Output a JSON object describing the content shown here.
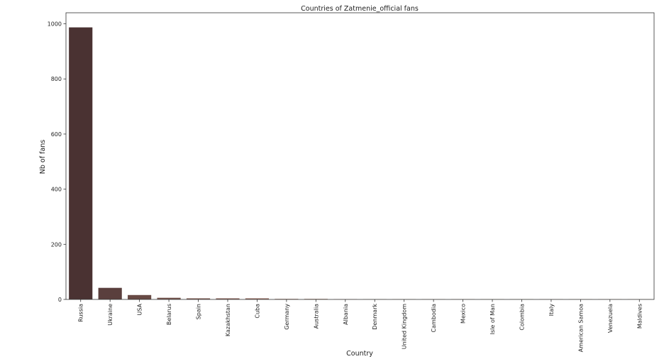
{
  "chart_data": {
    "type": "bar",
    "title": "Countries of Zatmenie_official fans",
    "xlabel": "Country",
    "ylabel": "Nb of fans",
    "ylim": [
      0,
      1040
    ],
    "yticks": [
      0,
      200,
      400,
      600,
      800,
      1000
    ],
    "grid": false,
    "categories": [
      "Russia",
      "Ukraine",
      "USA",
      "Belarus",
      "Spain",
      "Kazakhstan",
      "Cuba",
      "Germany",
      "Australia",
      "Albania",
      "Denmark",
      "United Kingdom",
      "Cambodia",
      "Mexico",
      "Isle of Man",
      "Colombia",
      "Italy",
      "American Samoa",
      "Venezuela",
      "Maldives"
    ],
    "values": [
      987,
      42,
      16,
      6,
      4,
      4,
      4,
      2,
      2,
      1,
      1,
      1,
      1,
      1,
      1,
      1,
      1,
      1,
      1,
      1
    ],
    "colors": [
      "#4a3232",
      "#5a3f3d",
      "#684a45",
      "#74534c",
      "#7e5a52",
      "#876157",
      "#8f675c",
      "#987060",
      "#9f7764",
      "#a67d68",
      "#ad846c",
      "#b38a70",
      "#b99074",
      "#be9777",
      "#c39d7b",
      "#c7a37f",
      "#cba983",
      "#cfaf87",
      "#d2b48b",
      "#d5ba8f"
    ]
  }
}
